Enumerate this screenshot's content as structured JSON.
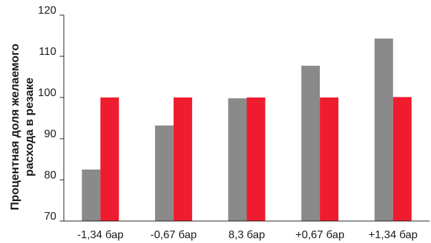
{
  "chart_data": {
    "type": "bar",
    "ylabel_lines": [
      "Процентная доля желаемого",
      "расхода в резаке"
    ],
    "xlabel": "",
    "categories": [
      "-1,34 бар",
      "-0,67 бар",
      "8,3 бар",
      "+0,67 бар",
      "+1,34 бар"
    ],
    "series": [
      {
        "values": [
          82.5,
          93.2,
          99.8,
          107.7,
          114.3
        ],
        "color": "#8a8a8a"
      },
      {
        "values": [
          100,
          100,
          100,
          100,
          100.1
        ],
        "color": "#ee1c2e"
      }
    ],
    "yticks": [
      70,
      80,
      90,
      100,
      110,
      120
    ],
    "ylim": [
      70,
      120
    ],
    "grid": false,
    "legend": "none"
  }
}
